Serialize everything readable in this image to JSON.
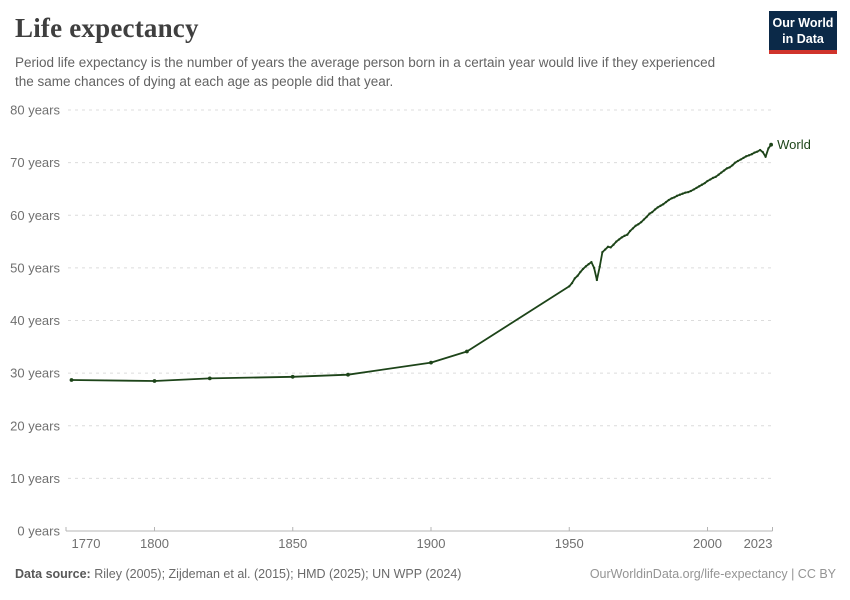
{
  "header": {
    "title": "Life expectancy",
    "subtitle": "Period life expectancy is the number of years the average person born in a certain year would live if they experienced the same chances of dying at each age as people did that year.",
    "logo": {
      "line1": "Our World",
      "line2": "in Data"
    }
  },
  "chart_data": {
    "type": "line",
    "title": "Life expectancy",
    "xlabel": "",
    "ylabel": "",
    "xlim": [
      1768,
      2023.5
    ],
    "ylim": [
      0,
      80
    ],
    "grid": "dashed-horizontal",
    "legend_position": "end-of-line-label",
    "y_ticks": [
      {
        "value": 0,
        "label": "0 years"
      },
      {
        "value": 10,
        "label": "10 years"
      },
      {
        "value": 20,
        "label": "20 years"
      },
      {
        "value": 30,
        "label": "30 years"
      },
      {
        "value": 40,
        "label": "40 years"
      },
      {
        "value": 50,
        "label": "50 years"
      },
      {
        "value": 60,
        "label": "60 years"
      },
      {
        "value": 70,
        "label": "70 years"
      },
      {
        "value": 80,
        "label": "80 years"
      }
    ],
    "x_ticks": [
      {
        "year": 1770,
        "label": "1770",
        "tick": false
      },
      {
        "year": 1800,
        "label": "1800",
        "tick": true
      },
      {
        "year": 1850,
        "label": "1850",
        "tick": true
      },
      {
        "year": 1900,
        "label": "1900",
        "tick": true
      },
      {
        "year": 1950,
        "label": "1950",
        "tick": true
      },
      {
        "year": 2000,
        "label": "2000",
        "tick": true
      },
      {
        "year": 2023,
        "label": "2023",
        "tick": false
      }
    ],
    "series": [
      {
        "name": "World",
        "points": [
          [
            1770,
            28.7
          ],
          [
            1800,
            28.5
          ],
          [
            1820,
            29.0
          ],
          [
            1850,
            29.3
          ],
          [
            1870,
            29.7
          ],
          [
            1900,
            32.0
          ],
          [
            1913,
            34.1
          ],
          [
            1950,
            46.5
          ],
          [
            1951,
            47.1
          ],
          [
            1952,
            48.0
          ],
          [
            1953,
            48.5
          ],
          [
            1954,
            49.2
          ],
          [
            1955,
            49.8
          ],
          [
            1956,
            50.3
          ],
          [
            1957,
            50.7
          ],
          [
            1958,
            51.1
          ],
          [
            1959,
            50.0
          ],
          [
            1960,
            47.7
          ],
          [
            1961,
            50.2
          ],
          [
            1962,
            53.0
          ],
          [
            1963,
            53.5
          ],
          [
            1964,
            54.0
          ],
          [
            1965,
            53.9
          ],
          [
            1966,
            54.4
          ],
          [
            1967,
            55.0
          ],
          [
            1968,
            55.4
          ],
          [
            1969,
            55.8
          ],
          [
            1970,
            56.1
          ],
          [
            1971,
            56.3
          ],
          [
            1972,
            57.0
          ],
          [
            1973,
            57.5
          ],
          [
            1974,
            58.0
          ],
          [
            1975,
            58.3
          ],
          [
            1976,
            58.7
          ],
          [
            1977,
            59.2
          ],
          [
            1978,
            59.7
          ],
          [
            1979,
            60.3
          ],
          [
            1980,
            60.6
          ],
          [
            1981,
            61.1
          ],
          [
            1982,
            61.5
          ],
          [
            1983,
            61.8
          ],
          [
            1984,
            62.1
          ],
          [
            1985,
            62.5
          ],
          [
            1986,
            62.9
          ],
          [
            1987,
            63.2
          ],
          [
            1988,
            63.4
          ],
          [
            1989,
            63.7
          ],
          [
            1990,
            63.9
          ],
          [
            1991,
            64.1
          ],
          [
            1992,
            64.3
          ],
          [
            1993,
            64.4
          ],
          [
            1994,
            64.6
          ],
          [
            1995,
            64.9
          ],
          [
            1996,
            65.2
          ],
          [
            1997,
            65.5
          ],
          [
            1998,
            65.8
          ],
          [
            1999,
            66.1
          ],
          [
            2000,
            66.5
          ],
          [
            2001,
            66.8
          ],
          [
            2002,
            67.1
          ],
          [
            2003,
            67.3
          ],
          [
            2004,
            67.7
          ],
          [
            2005,
            68.1
          ],
          [
            2006,
            68.5
          ],
          [
            2007,
            68.9
          ],
          [
            2008,
            69.1
          ],
          [
            2009,
            69.5
          ],
          [
            2010,
            70.0
          ],
          [
            2011,
            70.3
          ],
          [
            2012,
            70.6
          ],
          [
            2013,
            70.9
          ],
          [
            2014,
            71.2
          ],
          [
            2015,
            71.4
          ],
          [
            2016,
            71.6
          ],
          [
            2017,
            71.9
          ],
          [
            2018,
            72.1
          ],
          [
            2019,
            72.4
          ],
          [
            2020,
            72.0
          ],
          [
            2021,
            71.1
          ],
          [
            2022,
            72.7
          ],
          [
            2023,
            73.4
          ]
        ]
      }
    ]
  },
  "footer": {
    "source_label": "Data source:",
    "source_text": " Riley (2005); Zijdeman et al. (2015); HMD (2025); UN WPP (2024)",
    "link_text": "OurWorldinData.org/life-expectancy | CC BY"
  },
  "colors": {
    "line": "#1d4419",
    "grid": "#dcdcdc",
    "axis": "#b4b4b4",
    "tick_label": "#707070",
    "title": "#3f3f3f",
    "subtitle": "#636363",
    "footer_text": "#6a6a6a",
    "footer_label": "#585858",
    "footer_link": "#949494",
    "logo_bg": "#0b2948",
    "logo_red": "#d0342c"
  }
}
